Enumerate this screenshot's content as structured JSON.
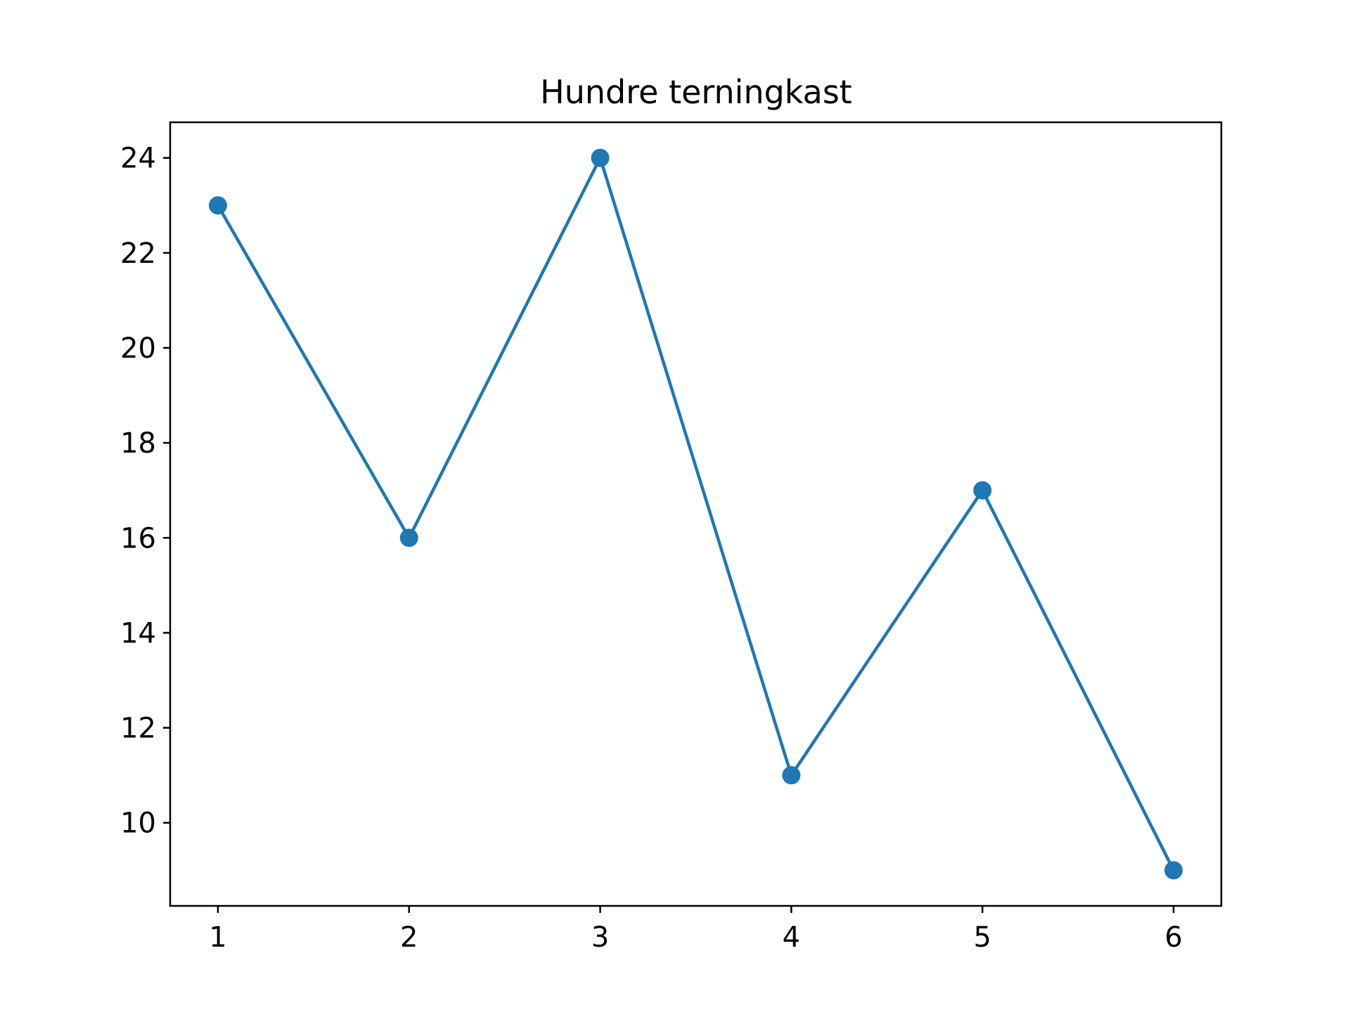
{
  "chart_data": {
    "type": "line",
    "title": "Hundre terningkast",
    "xlabel": "",
    "ylabel": "",
    "x": [
      1,
      2,
      3,
      4,
      5,
      6
    ],
    "series": [
      {
        "values": [
          23,
          16,
          24,
          11,
          17,
          9
        ],
        "color": "#1f77b4",
        "marker": "circle"
      }
    ],
    "xlim": [
      0.75,
      6.25
    ],
    "ylim": [
      8.25,
      24.75
    ],
    "xticks": [
      1,
      2,
      3,
      4,
      5,
      6
    ],
    "yticks": [
      10,
      12,
      14,
      16,
      18,
      20,
      22,
      24
    ],
    "grid": false,
    "legend": "none"
  }
}
